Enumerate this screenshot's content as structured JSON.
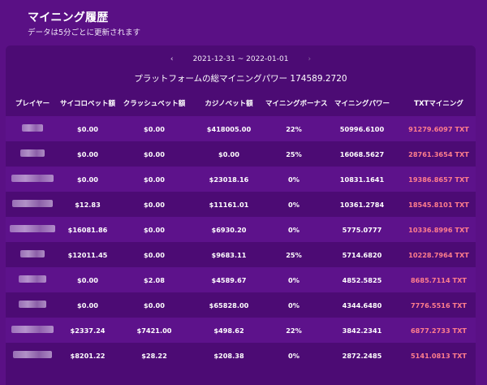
{
  "page": {
    "title": "マイニング履歴",
    "subtitle": "データは5分ごとに更新されます"
  },
  "date_nav": {
    "range": "2021-12-31 ~ 2022-01-01"
  },
  "total_power_text": "プラットフォームの総マイニングパワー 174589.2720",
  "table": {
    "headers": [
      "プレイヤー",
      "サイコロベット額",
      "クラッシュベット額",
      "カジノベット額",
      "マイニングボーナス",
      "マイニングパワー",
      "TXTマイニング"
    ],
    "rows": [
      {
        "player": "",
        "dice": "$0.00",
        "crash": "$0.00",
        "casino": "$418005.00",
        "bonus": "22%",
        "power": "50996.6100",
        "txt": "91279.6097 TXT"
      },
      {
        "player": "",
        "dice": "$0.00",
        "crash": "$0.00",
        "casino": "$0.00",
        "bonus": "25%",
        "power": "16068.5627",
        "txt": "28761.3654 TXT"
      },
      {
        "player": "",
        "dice": "$0.00",
        "crash": "$0.00",
        "casino": "$23018.16",
        "bonus": "0%",
        "power": "10831.1641",
        "txt": "19386.8657 TXT"
      },
      {
        "player": "",
        "dice": "$12.83",
        "crash": "$0.00",
        "casino": "$11161.01",
        "bonus": "0%",
        "power": "10361.2784",
        "txt": "18545.8101 TXT"
      },
      {
        "player": "",
        "dice": "$16081.86",
        "crash": "$0.00",
        "casino": "$6930.20",
        "bonus": "0%",
        "power": "5775.0777",
        "txt": "10336.8996 TXT"
      },
      {
        "player": "",
        "dice": "$12011.45",
        "crash": "$0.00",
        "casino": "$9683.11",
        "bonus": "25%",
        "power": "5714.6820",
        "txt": "10228.7964 TXT"
      },
      {
        "player": "",
        "dice": "$0.00",
        "crash": "$2.08",
        "casino": "$4589.67",
        "bonus": "0%",
        "power": "4852.5825",
        "txt": "8685.7114 TXT"
      },
      {
        "player": "",
        "dice": "$0.00",
        "crash": "$0.00",
        "casino": "$65828.00",
        "bonus": "0%",
        "power": "4344.6480",
        "txt": "7776.5516 TXT"
      },
      {
        "player": "",
        "dice": "$2337.24",
        "crash": "$7421.00",
        "casino": "$498.62",
        "bonus": "22%",
        "power": "3842.2341",
        "txt": "6877.2733 TXT"
      },
      {
        "player": "",
        "dice": "$8201.22",
        "crash": "$28.22",
        "casino": "$208.38",
        "bonus": "0%",
        "power": "2872.2485",
        "txt": "5141.0813 TXT"
      }
    ]
  },
  "colors": {
    "background": "#5a1085",
    "panel": "#4c0b74",
    "txt_accent": "#ff7e8c"
  }
}
